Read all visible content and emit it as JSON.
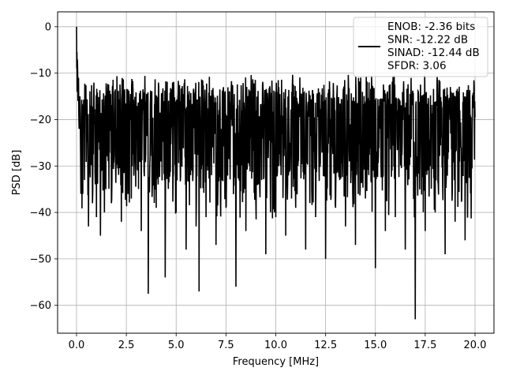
{
  "chart_data": {
    "type": "line",
    "title": "",
    "xlabel": "Frequency [MHz]",
    "ylabel": "PSD [dB]",
    "xlim": [
      -0.95,
      20.95
    ],
    "ylim": [
      -66,
      3.2
    ],
    "xticks": [
      0.0,
      2.5,
      5.0,
      7.5,
      10.0,
      12.5,
      15.0,
      17.5,
      20.0
    ],
    "xtick_labels": [
      "0.0",
      "2.5",
      "5.0",
      "7.5",
      "10.0",
      "12.5",
      "15.0",
      "17.5",
      "20.0"
    ],
    "yticks": [
      0,
      -10,
      -20,
      -30,
      -40,
      -50,
      -60
    ],
    "ytick_labels": [
      "0",
      "−10",
      "−20",
      "−30",
      "−40",
      "−50",
      "−60"
    ],
    "grid": true,
    "legend_position": "top-right",
    "series": [
      {
        "name": "ENOB: -2.36 bits\nSNR: -12.22 dB\nSINAD: -12.44 dB\nSFDR: 3.06",
        "color": "#000000",
        "x": [
          0.0,
          0.01,
          0.02,
          0.03,
          0.05,
          0.07,
          0.1,
          0.13,
          0.17,
          0.22,
          0.3,
          0.4,
          0.5,
          0.6,
          0.7,
          0.8,
          0.9,
          1.0,
          1.1,
          1.2,
          1.3,
          1.4,
          1.5,
          1.75,
          2.0,
          2.25,
          2.5,
          2.75,
          3.0,
          3.25,
          3.5,
          3.6,
          3.75,
          4.0,
          4.25,
          4.45,
          4.75,
          5.0,
          5.25,
          5.5,
          5.75,
          6.0,
          6.15,
          6.25,
          6.5,
          6.75,
          7.0,
          7.25,
          7.5,
          7.75,
          8.0,
          8.25,
          8.5,
          8.75,
          9.0,
          9.25,
          9.5,
          9.75,
          10.0,
          10.25,
          10.5,
          10.75,
          11.0,
          11.25,
          11.5,
          11.75,
          12.0,
          12.25,
          12.5,
          12.75,
          13.0,
          13.25,
          13.5,
          13.75,
          14.0,
          14.25,
          14.5,
          14.75,
          15.0,
          15.25,
          15.5,
          15.75,
          16.0,
          16.25,
          16.5,
          16.75,
          17.0,
          17.25,
          17.5,
          17.75,
          18.0,
          18.25,
          18.5,
          18.75,
          19.0,
          19.25,
          19.5,
          19.75,
          20.0
        ],
        "y": [
          0.0,
          -9.0,
          -5.5,
          -14.0,
          -8.0,
          -16.0,
          -11.0,
          -22.0,
          -15.0,
          -36.0,
          -18.0,
          -33.0,
          -20.0,
          -43.0,
          -17.0,
          -38.0,
          -21.0,
          -41.0,
          -19.0,
          -45.0,
          -22.0,
          -40.0,
          -18.0,
          -38.0,
          -22.0,
          -42.0,
          -19.0,
          -37.0,
          -21.0,
          -44.0,
          -20.0,
          -57.5,
          -21.0,
          -39.0,
          -19.0,
          -54.0,
          -22.0,
          -40.0,
          -20.0,
          -48.0,
          -21.0,
          -43.0,
          -57.0,
          -22.0,
          -41.0,
          -19.0,
          -47.0,
          -22.0,
          -39.0,
          -20.0,
          -56.0,
          -22.0,
          -44.0,
          -21.0,
          -38.0,
          -22.0,
          -49.0,
          -21.0,
          -41.0,
          -19.0,
          -45.0,
          -22.0,
          -39.0,
          -20.0,
          -48.0,
          -22.0,
          -41.0,
          -21.0,
          -50.0,
          -20.0,
          -39.0,
          -22.0,
          -43.0,
          -21.0,
          -47.0,
          -19.0,
          -37.0,
          -21.0,
          -52.0,
          -22.0,
          -44.0,
          -20.0,
          -41.0,
          -22.0,
          -48.0,
          -21.0,
          -63.0,
          -20.0,
          -44.0,
          -22.0,
          -40.0,
          -21.0,
          -49.0,
          -20.0,
          -42.0,
          -22.0,
          -46.0,
          -21.0,
          -19.5
        ]
      }
    ]
  }
}
